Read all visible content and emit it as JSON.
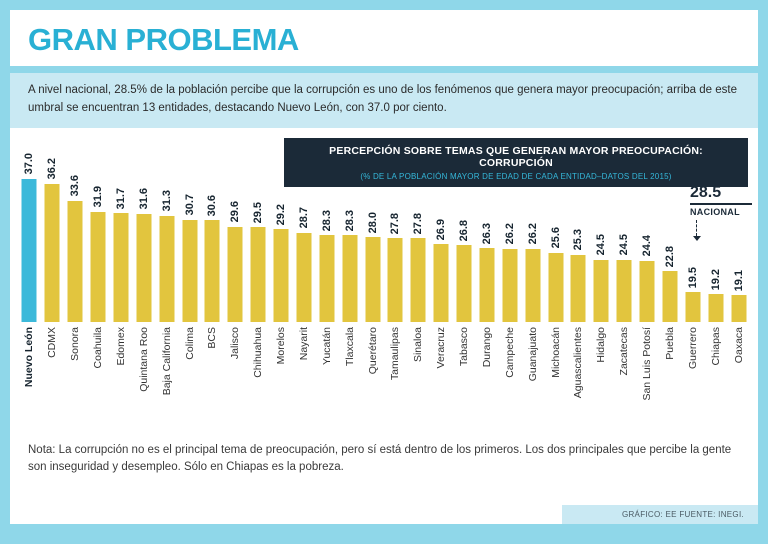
{
  "colors": {
    "frame_border": "#8fd7e9",
    "title_cyan": "#29b0d4",
    "intro_bg": "#c9e9f3",
    "navy": "#1b2a38",
    "bar_yellow": "#e2c53e",
    "bar_highlight_cyan": "#3cb9da"
  },
  "header": {
    "title": "GRAN PROBLEMA"
  },
  "intro": {
    "text": "A nivel nacional, 28.5% de la población percibe que la corrupción es uno de los fenómenos que genera mayor preocupación; arriba de este umbral se encuentran 13 entidades, destacando Nuevo León, con 37.0 por ciento."
  },
  "chart_header": {
    "title": "PERCEPCIÓN SOBRE TEMAS QUE GENERAN MAYOR PREOCUPACIÓN: CORRUPCIÓN",
    "subtitle": "(% DE LA POBLACIÓN MAYOR DE EDAD DE CADA ENTIDAD–DATOS DEL 2015)"
  },
  "national_marker": {
    "value": "28.5",
    "label": "NACIONAL"
  },
  "chart_data": {
    "type": "bar",
    "title": "PERCEPCIÓN SOBRE TEMAS QUE GENERAN MAYOR PREOCUPACIÓN: CORRUPCIÓN",
    "subtitle": "(% DE LA POBLACIÓN MAYOR DE EDAD DE CADA ENTIDAD–DATOS DEL 2015)",
    "categories": [
      "Nuevo León",
      "CDMX",
      "Sonora",
      "Coahuila",
      "Edomex",
      "Quintana Roo",
      "Baja California",
      "Colima",
      "BCS",
      "Jalisco",
      "Chihuahua",
      "Morelos",
      "Nayarit",
      "Yucatán",
      "Tlaxcala",
      "Querétaro",
      "Tamaulipas",
      "Sinaloa",
      "Veracruz",
      "Tabasco",
      "Durango",
      "Campeche",
      "Guanajuato",
      "Michoacán",
      "Aguascalientes",
      "Hidalgo",
      "Zacatecas",
      "San Luis Potosí",
      "Puebla",
      "Guerrero",
      "Chiapas",
      "Oaxaca"
    ],
    "values": [
      37.0,
      36.2,
      33.6,
      31.9,
      31.7,
      31.6,
      31.3,
      30.7,
      30.6,
      29.6,
      29.5,
      29.2,
      28.7,
      28.3,
      28.3,
      28.0,
      27.8,
      27.8,
      26.9,
      26.8,
      26.3,
      26.2,
      26.2,
      25.6,
      25.3,
      24.5,
      24.5,
      24.4,
      22.8,
      19.5,
      19.2,
      19.1
    ],
    "highlight_index": 0,
    "highlight_color": "#3cb9da",
    "bar_color": "#e2c53e",
    "national_line": 28.5,
    "ylim": [
      15,
      37
    ],
    "xlabel": "",
    "ylabel": "",
    "grid": false,
    "legend": "none",
    "value_label_format": "one_decimal"
  },
  "note": {
    "text": "Nota: La corrupción no es el principal tema de preocupación, pero sí está dentro de los primeros. Los dos principales  que percibe la gente son  inseguridad y desempleo. Sólo en Chiapas es la pobreza."
  },
  "footer": {
    "credit": "GRÁFICO: EE  FUENTE: INEGI."
  }
}
